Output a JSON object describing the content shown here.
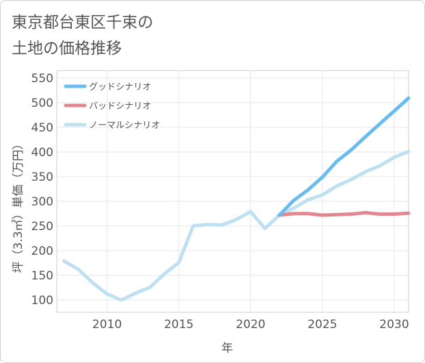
{
  "title_lines": [
    "東京都台東区千束の",
    "土地の価格推移"
  ],
  "chart_data": {
    "type": "line",
    "xlabel": "年",
    "ylabel": "坪（3.3㎡）単価（万円）",
    "xlim": [
      2006.5,
      2031
    ],
    "ylim": [
      75,
      565
    ],
    "xticks": [
      2010,
      2015,
      2020,
      2025,
      2030
    ],
    "yticks": [
      100,
      150,
      200,
      250,
      300,
      350,
      400,
      450,
      500,
      550
    ],
    "grid": true,
    "legend_position": "top-left",
    "series": [
      {
        "name": "グッドシナリオ",
        "color": "#6bbcee",
        "x": [
          2022,
          2023,
          2024,
          2025,
          2026,
          2027,
          2028,
          2029,
          2030,
          2031
        ],
        "y": [
          272,
          302,
          323,
          349,
          381,
          404,
          431,
          457,
          483,
          509
        ]
      },
      {
        "name": "バッドシナリオ",
        "color": "#e2868f",
        "x": [
          2022,
          2023,
          2024,
          2025,
          2026,
          2027,
          2028,
          2029,
          2030,
          2031
        ],
        "y": [
          272,
          275,
          275,
          272,
          273,
          274,
          277,
          274,
          274,
          276
        ]
      },
      {
        "name": "ノーマルシナリオ",
        "color": "#bfe0f0",
        "x": [
          2007,
          2008,
          2009,
          2010,
          2011,
          2012,
          2013,
          2014,
          2015,
          2016,
          2017,
          2018,
          2019,
          2020,
          2021,
          2022,
          2023,
          2024,
          2025,
          2026,
          2027,
          2028,
          2029,
          2030,
          2031
        ],
        "y": [
          179,
          162,
          135,
          112,
          100,
          114,
          126,
          153,
          176,
          250,
          253,
          252,
          263,
          279,
          245,
          272,
          286,
          303,
          313,
          331,
          344,
          360,
          372,
          389,
          401
        ]
      }
    ]
  }
}
